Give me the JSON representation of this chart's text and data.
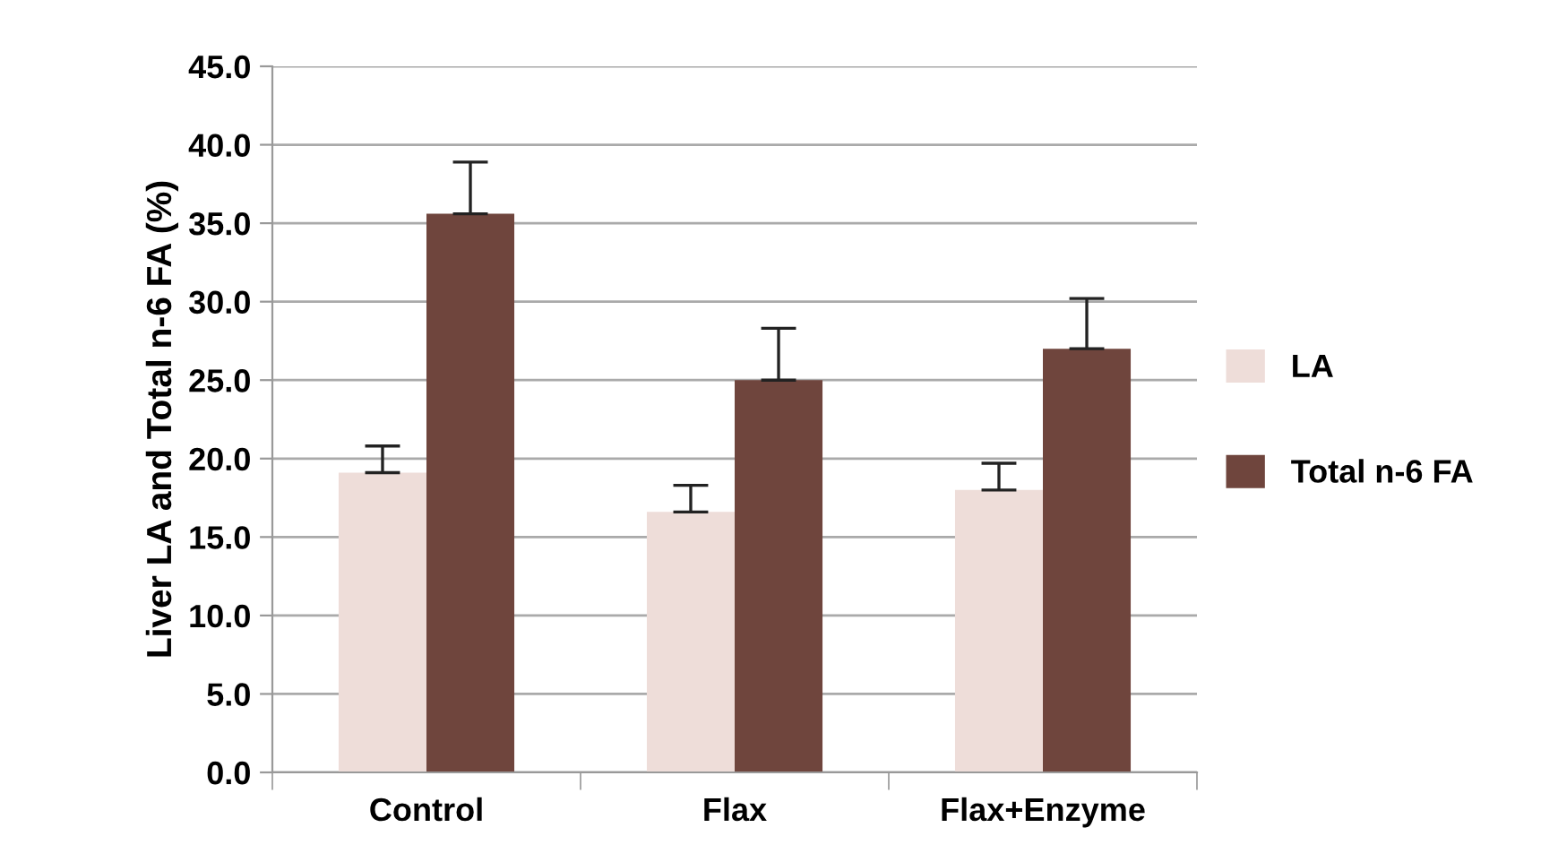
{
  "chart_data": {
    "type": "bar",
    "ylabel": "Liver LA and Total n-6 FA (%)",
    "categories": [
      "Control",
      "Flax",
      "Flax+Enzyme"
    ],
    "series": [
      {
        "name": "LA",
        "color": "#eeddd9",
        "values": [
          19.1,
          16.6,
          18.0
        ],
        "errors": [
          [
            19.1,
            20.8
          ],
          [
            16.6,
            18.3
          ],
          [
            18.0,
            19.7
          ]
        ]
      },
      {
        "name": "Total n-6 FA",
        "color": "#6f453d",
        "values": [
          35.6,
          25.0,
          27.0
        ],
        "errors": [
          [
            35.6,
            38.9
          ],
          [
            25.0,
            28.3
          ],
          [
            27.0,
            30.2
          ]
        ]
      }
    ],
    "ylim": [
      0,
      45
    ],
    "yticks": [
      {
        "value": 0,
        "label": "0.0"
      },
      {
        "value": 5,
        "label": "5.0"
      },
      {
        "value": 10,
        "label": "10.0"
      },
      {
        "value": 15,
        "label": "15.0"
      },
      {
        "value": 20,
        "label": "20.0"
      },
      {
        "value": 25,
        "label": "25.0"
      },
      {
        "value": 30,
        "label": "30.0"
      },
      {
        "value": 35,
        "label": "35.0"
      },
      {
        "value": 40,
        "label": "40.0"
      },
      {
        "value": 45,
        "label": "45.0"
      }
    ],
    "grid": "y",
    "legend": "right"
  }
}
